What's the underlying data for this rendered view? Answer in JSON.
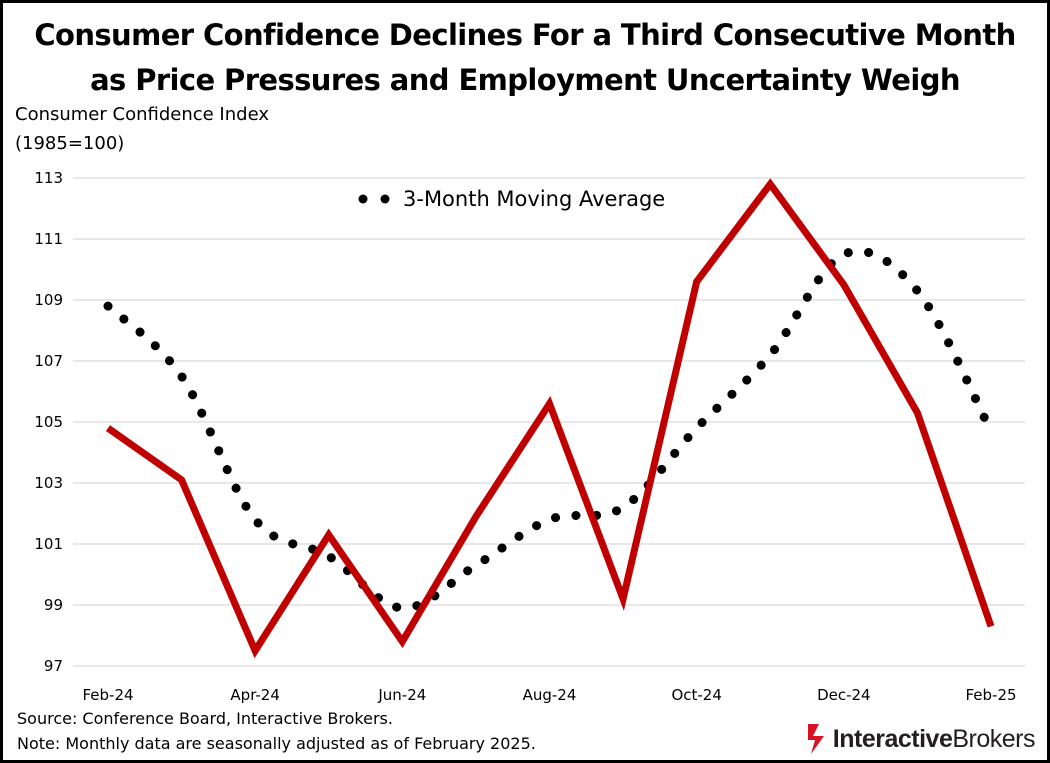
{
  "title": {
    "line1": "Consumer Confidence Declines For a Third Consecutive Month",
    "line2": "as Price Pressures and Employment Uncertainty Weigh"
  },
  "chart_data": {
    "type": "line",
    "ylabel_line1": "Consumer Confidence Index",
    "ylabel_line2": "(1985=100)",
    "x": [
      "Feb-24",
      "Mar-24",
      "Apr-24",
      "May-24",
      "Jun-24",
      "Jul-24",
      "Aug-24",
      "Sep-24",
      "Oct-24",
      "Nov-24",
      "Dec-24",
      "Jan-25",
      "Feb-25"
    ],
    "x_tick_labels": [
      "Feb-24",
      "Apr-24",
      "Jun-24",
      "Aug-24",
      "Oct-24",
      "Dec-24",
      "Feb-25"
    ],
    "y_ticks": [
      97,
      99,
      101,
      103,
      105,
      107,
      109,
      111,
      113
    ],
    "ylim": [
      97,
      113
    ],
    "grid": true,
    "series": [
      {
        "name": "Consumer Confidence Index",
        "style": "solid",
        "color": "#c00000",
        "values": [
          104.8,
          103.1,
          97.5,
          101.3,
          97.8,
          101.9,
          105.6,
          99.2,
          109.6,
          112.8,
          109.5,
          105.3,
          98.3
        ]
      },
      {
        "name": "3-Month Moving Average",
        "style": "dotted",
        "color": "#000000",
        "values": [
          108.8,
          106.5,
          101.8,
          100.6,
          98.9,
          100.3,
          101.8,
          102.2,
          104.8,
          107.2,
          110.5,
          109.3,
          104.7
        ]
      }
    ],
    "legend": {
      "label": "3-Month Moving Average",
      "placement": "top-center"
    }
  },
  "footer": {
    "source": "Source: Conference Board, Interactive Brokers.",
    "note": "Note: Monthly data are seasonally adjusted as of February 2025.",
    "logo_bold": "Interactive",
    "logo_regular": "Brokers"
  }
}
